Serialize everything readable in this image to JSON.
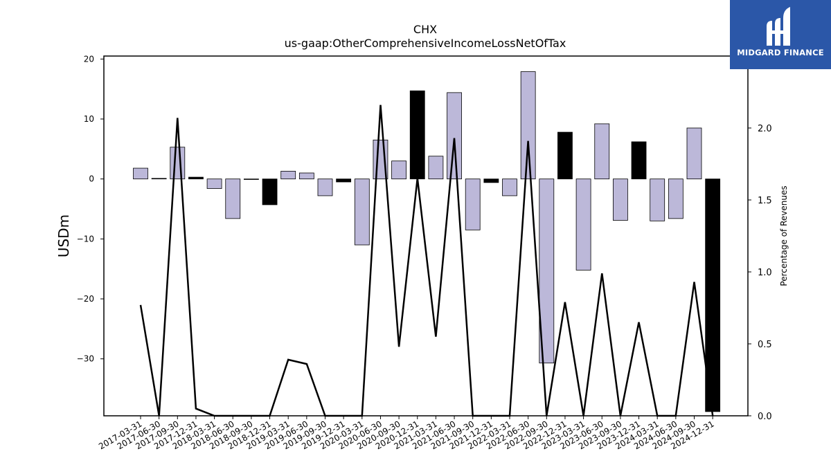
{
  "logo": {
    "text": "MIDGARD FINANCE",
    "mark": "mh-monogram-icon",
    "bg_color": "#2b57a8"
  },
  "colors": {
    "positive_bar": "#bcb8d9",
    "negative_highlight_bar": "#000000",
    "line": "#000000"
  },
  "chart_data": {
    "type": "bar",
    "title": "CHX",
    "subtitle": "us-gaap:OtherComprehensiveIncomeLossNetOfTax",
    "ylabel": "USDm",
    "y2label": "Percentage of Revenues",
    "ylim": [
      -39.5,
      20.5
    ],
    "y2lim": [
      0.0,
      2.5
    ],
    "yticks": [
      20,
      10,
      0,
      -10,
      -20,
      -30
    ],
    "y2ticks": [
      0.0,
      0.5,
      1.0,
      1.5,
      2.0
    ],
    "categories": [
      "2017-03-31",
      "2017-06-30",
      "2017-09-30",
      "2017-12-31",
      "2018-03-31",
      "2018-06-30",
      "2018-09-30",
      "2018-12-31",
      "2019-03-31",
      "2019-06-30",
      "2019-09-30",
      "2019-12-31",
      "2020-03-31",
      "2020-06-30",
      "2020-09-30",
      "2020-12-31",
      "2021-03-31",
      "2021-06-30",
      "2021-09-30",
      "2021-12-31",
      "2022-03-31",
      "2022-06-30",
      "2022-09-30",
      "2022-12-31",
      "2023-03-31",
      "2023-06-30",
      "2023-09-30",
      "2023-12-31",
      "2024-03-31",
      "2024-06-30",
      "2024-09-30",
      "2024-12-31"
    ],
    "series": [
      {
        "values": [
          1.8,
          0.1,
          5.3,
          0.3,
          -1.6,
          -6.6,
          0.0,
          -4.3,
          1.3,
          1.0,
          -2.8,
          -0.5,
          -11.0,
          6.5,
          3.0,
          14.7,
          3.8,
          14.4,
          -8.5,
          -0.6,
          -2.8,
          17.9,
          -30.7,
          7.8,
          -15.2,
          9.2,
          -6.9,
          6.2,
          -7.0,
          -6.6,
          8.5,
          -38.8
        ],
        "highlight": [
          false,
          false,
          false,
          true,
          false,
          false,
          false,
          true,
          false,
          false,
          false,
          true,
          false,
          false,
          false,
          true,
          false,
          false,
          false,
          true,
          false,
          false,
          false,
          true,
          false,
          false,
          false,
          true,
          false,
          false,
          false,
          true
        ]
      },
      {
        "axis": "right",
        "type": "line",
        "values": [
          0.77,
          0.0,
          2.07,
          0.05,
          0.0,
          0.0,
          0.0,
          0.0,
          0.39,
          0.36,
          0.0,
          0.0,
          0.0,
          2.16,
          0.48,
          1.65,
          0.55,
          1.93,
          0.0,
          0.0,
          0.0,
          1.91,
          0.0,
          0.79,
          0.0,
          0.99,
          0.0,
          0.65,
          0.0,
          0.0,
          0.93,
          0.0
        ]
      }
    ]
  }
}
